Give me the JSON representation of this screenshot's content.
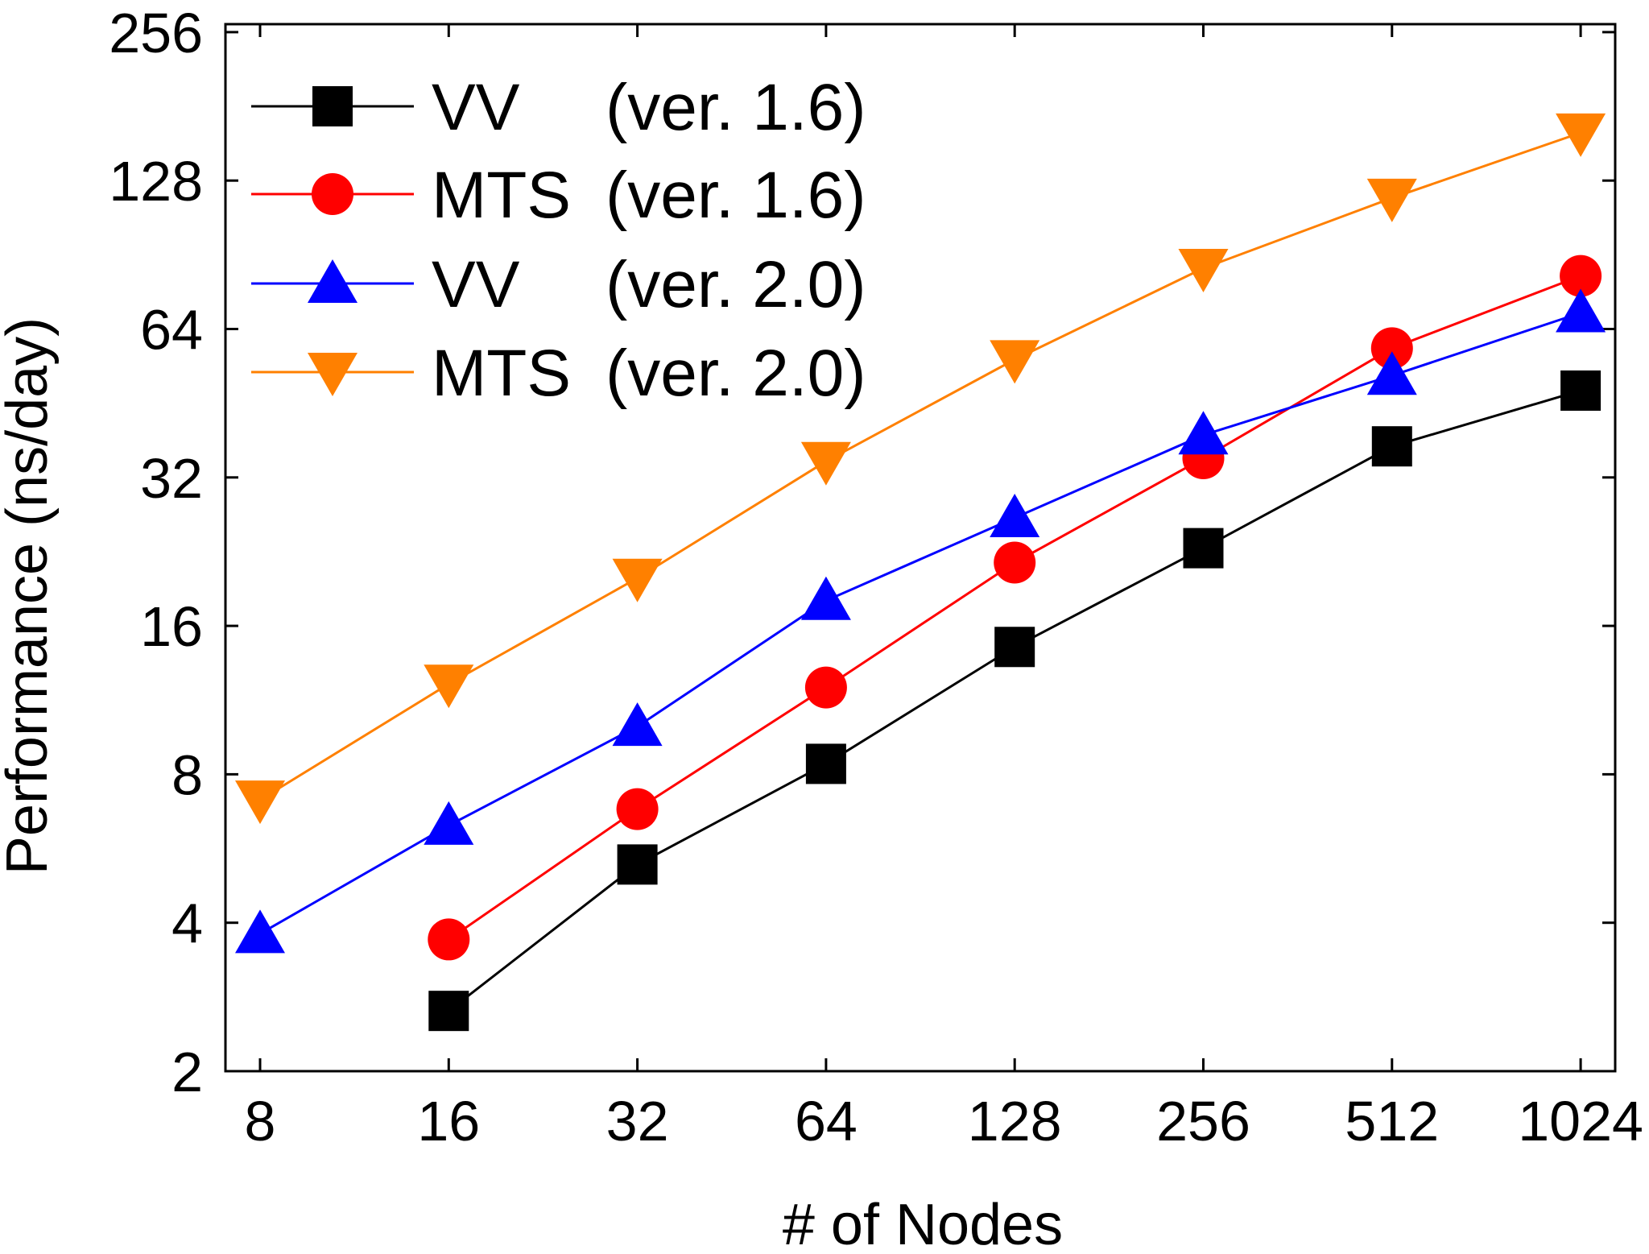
{
  "chart_data": {
    "type": "line",
    "xlabel": "# of Nodes",
    "ylabel": "Performance (ns/day)",
    "x_scale": "log2",
    "y_scale": "log2",
    "xlim": [
      8,
      1024
    ],
    "ylim": [
      2,
      256
    ],
    "x_ticks": [
      "8",
      "16",
      "32",
      "64",
      "128",
      "256",
      "512",
      "1024"
    ],
    "y_ticks": [
      "2",
      "4",
      "8",
      "16",
      "32",
      "64",
      "128",
      "256"
    ],
    "grid": false,
    "legend_position": "top-left",
    "x": [
      8,
      16,
      32,
      64,
      128,
      256,
      512,
      1024
    ],
    "series": [
      {
        "name": "VV (ver. 1.6)",
        "legend_name": "VV",
        "legend_version": "(ver. 1.6)",
        "color": "#000000",
        "marker": "square",
        "values": [
          null,
          2.65,
          5.25,
          8.4,
          14.5,
          23.0,
          37.0,
          48.0
        ]
      },
      {
        "name": "MTS (ver. 1.6)",
        "legend_name": "MTS",
        "legend_version": "(ver. 1.6)",
        "color": "#ff0000",
        "marker": "circle",
        "values": [
          null,
          3.7,
          6.8,
          12.0,
          21.5,
          35.0,
          58.5,
          82.0
        ]
      },
      {
        "name": "VV (ver. 2.0)",
        "legend_name": "VV",
        "legend_version": "(ver. 2.0)",
        "color": "#0000ff",
        "marker": "triangle-up",
        "values": [
          3.8,
          6.3,
          10.0,
          18.0,
          26.5,
          39.0,
          51.5,
          69.0
        ]
      },
      {
        "name": "MTS (ver. 2.0)",
        "legend_name": "MTS",
        "legend_version": "(ver. 2.0)",
        "color": "#ff8000",
        "marker": "triangle-down",
        "values": [
          7.1,
          12.2,
          20.0,
          34.5,
          55.5,
          85.0,
          118.0,
          160.0
        ]
      }
    ]
  }
}
